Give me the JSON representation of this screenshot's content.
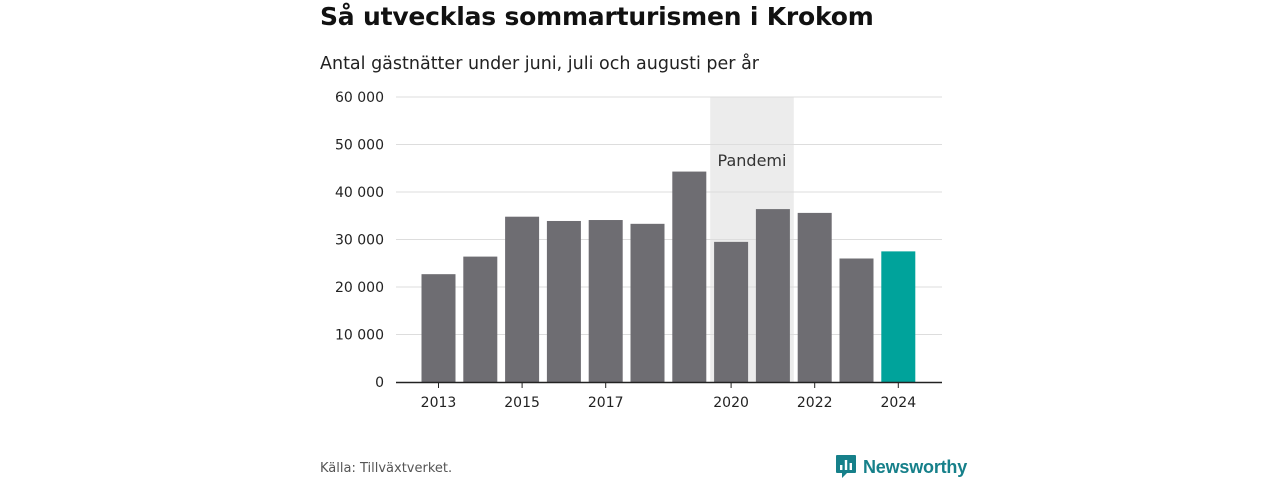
{
  "title": "Så utvecklas sommarturismen i Krokom",
  "subtitle": "Antal gästnätter under juni, juli och augusti per år",
  "source": "Källa: Tillväxtverket.",
  "brand": {
    "name": "Newsworthy",
    "icon": "newsworthy-logo-icon",
    "color": "#16808a"
  },
  "chart_data": {
    "type": "bar",
    "categories": [
      "2013",
      "2014",
      "2015",
      "2016",
      "2017",
      "2018",
      "2019",
      "2020",
      "2021",
      "2022",
      "2023",
      "2024"
    ],
    "x_tick_labels": [
      "2013",
      "2015",
      "2017",
      "2020",
      "2022",
      "2024"
    ],
    "values": [
      22700,
      26400,
      34800,
      33900,
      34100,
      33300,
      44300,
      29500,
      36400,
      35600,
      26000,
      27500
    ],
    "ylim": [
      0,
      60000
    ],
    "y_ticks": [
      0,
      10000,
      20000,
      30000,
      40000,
      50000,
      60000
    ],
    "y_tick_labels": [
      "0",
      "10 000",
      "20 000",
      "30 000",
      "40 000",
      "50 000",
      "60 000"
    ],
    "grid": true,
    "highlight_category": "2024",
    "colors": {
      "bar": "#6e6d72",
      "highlight": "#00a39b",
      "band": "#ececec",
      "grid": "#dddddd",
      "axis": "#222222"
    },
    "annotations": [
      {
        "type": "band",
        "label": "Pandemi",
        "from": "2020",
        "to": "2021"
      }
    ]
  }
}
